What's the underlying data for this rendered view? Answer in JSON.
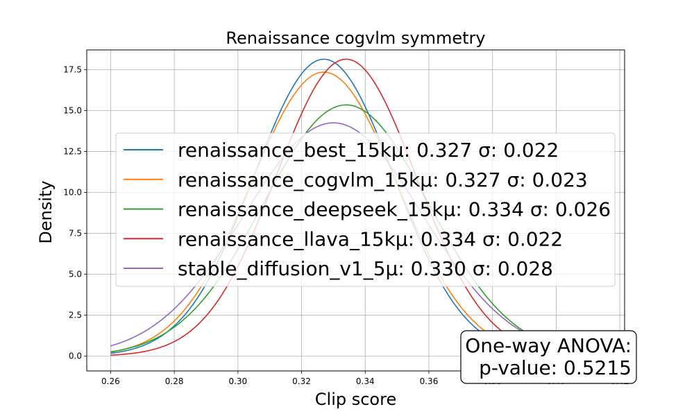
{
  "chart_data": {
    "type": "line",
    "title": "Renaissance cogvlm symmetry",
    "xlabel": "Clip score",
    "ylabel": "Density",
    "xlim": [
      0.2525,
      0.4215
    ],
    "ylim": [
      -0.9,
      18.7
    ],
    "x_ticks": [
      0.26,
      0.28,
      0.3,
      0.32,
      0.34,
      0.36,
      0.38,
      0.4,
      0.42
    ],
    "x_tick_labels": [
      "0.26",
      "0.28",
      "0.30",
      "0.32",
      "0.34",
      "0.36",
      "0.38",
      "0.40",
      "0.42"
    ],
    "y_ticks": [
      0.0,
      2.5,
      5.0,
      7.5,
      10.0,
      12.5,
      15.0,
      17.5
    ],
    "y_tick_labels": [
      "0.0",
      "2.5",
      "5.0",
      "7.5",
      "10.0",
      "12.5",
      "15.0",
      "17.5"
    ],
    "x_range": [
      0.26,
      0.414
    ],
    "grid": true,
    "legend_position": "center",
    "series": [
      {
        "name": "renaissance_best_15kμ: 0.327 σ: 0.022",
        "mean": 0.327,
        "std": 0.022,
        "color": "#1f77b4"
      },
      {
        "name": "renaissance_cogvlm_15kμ: 0.327 σ: 0.023",
        "mean": 0.327,
        "std": 0.023,
        "color": "#ff7f0e"
      },
      {
        "name": "renaissance_deepseek_15kμ: 0.334 σ: 0.026",
        "mean": 0.334,
        "std": 0.026,
        "color": "#2ca02c"
      },
      {
        "name": "renaissance_llava_15kμ: 0.334 σ: 0.022",
        "mean": 0.334,
        "std": 0.022,
        "color": "#d62728"
      },
      {
        "name": "stable_diffusion_v1_5μ: 0.330 σ: 0.028",
        "mean": 0.33,
        "std": 0.028,
        "color": "#9467bd"
      }
    ],
    "annotation": {
      "line1": "One-way ANOVA:",
      "line2": "p-value: 0.5215"
    }
  }
}
